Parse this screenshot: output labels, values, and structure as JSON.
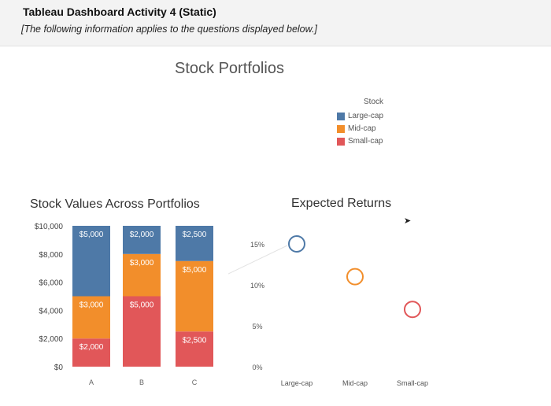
{
  "header": {
    "title": "Tableau Dashboard Activity 4 (Static)",
    "note": "[The following information applies to the questions displayed below.]"
  },
  "dashboard": {
    "title": "Stock Portfolios"
  },
  "legend": {
    "title": "Stock",
    "items": [
      {
        "label": "Large-cap",
        "color": "#4e79a7"
      },
      {
        "label": "Mid-cap",
        "color": "#f28e2b"
      },
      {
        "label": "Small-cap",
        "color": "#e15759"
      }
    ]
  },
  "cursor": "arrow-cursor-icon",
  "chart_data": [
    {
      "type": "bar",
      "stacked": true,
      "title": "Stock Values Across Portfolios",
      "categories": [
        "A",
        "B",
        "C"
      ],
      "series": [
        {
          "name": "Small-cap",
          "values": [
            2000,
            5000,
            2500
          ],
          "labels": [
            "$2,000",
            "$5,000",
            "$2,500"
          ],
          "color": "#e15759"
        },
        {
          "name": "Mid-cap",
          "values": [
            3000,
            3000,
            5000
          ],
          "labels": [
            "$3,000",
            "$3,000",
            "$5,000"
          ],
          "color": "#f28e2b"
        },
        {
          "name": "Large-cap",
          "values": [
            5000,
            2000,
            2500
          ],
          "labels": [
            "$5,000",
            "$2,000",
            "$2,500"
          ],
          "color": "#4e79a7"
        }
      ],
      "ylim": [
        0,
        10000
      ],
      "yticks": [
        {
          "value": 0,
          "label": "$0"
        },
        {
          "value": 2000,
          "label": "$2,000"
        },
        {
          "value": 4000,
          "label": "$4,000"
        },
        {
          "value": 6000,
          "label": "$6,000"
        },
        {
          "value": 8000,
          "label": "$8,000"
        },
        {
          "value": 10000,
          "label": "$10,000"
        }
      ],
      "grid": false
    },
    {
      "type": "scatter",
      "title": "Expected Returns",
      "categories": [
        "Large-cap",
        "Mid-cap",
        "Small-cap"
      ],
      "points": [
        {
          "x": "Large-cap",
          "y": 15,
          "color": "#4e79a7"
        },
        {
          "x": "Mid-cap",
          "y": 11,
          "color": "#f28e2b"
        },
        {
          "x": "Small-cap",
          "y": 7,
          "color": "#e15759"
        }
      ],
      "ylim": [
        0,
        15
      ],
      "yticks": [
        {
          "value": 0,
          "label": "0%"
        },
        {
          "value": 5,
          "label": "5%"
        },
        {
          "value": 10,
          "label": "10%"
        },
        {
          "value": 15,
          "label": "15%"
        }
      ],
      "grid": false
    }
  ]
}
